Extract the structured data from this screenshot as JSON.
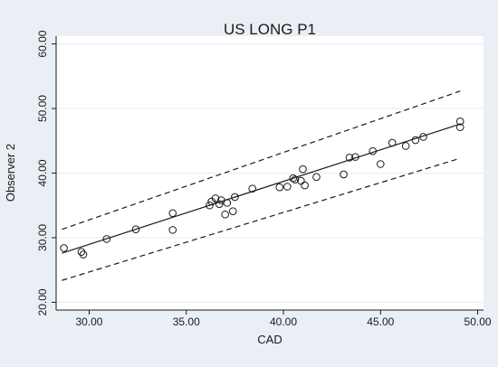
{
  "chart_data": {
    "type": "scatter",
    "title": "US LONG P1",
    "xlabel": "CAD",
    "ylabel": "Observer 2",
    "xlim": [
      28.3,
      50.3
    ],
    "ylim": [
      18.8,
      61.2
    ],
    "x_ticks": [
      30,
      35,
      40,
      45,
      50
    ],
    "x_tick_labels": [
      "30.00",
      "35.00",
      "40.00",
      "45.00",
      "50.00"
    ],
    "y_ticks": [
      20,
      30,
      40,
      50,
      60
    ],
    "y_tick_labels": [
      "20.00",
      "30.00",
      "40.00",
      "50.00",
      "60.00"
    ],
    "grid": "horizontal",
    "background_color": "#e9eff4",
    "plot_color": "#ffffff",
    "marker_color": "#1a1a1a",
    "points": [
      {
        "x": 28.7,
        "y": 28.4
      },
      {
        "x": 29.6,
        "y": 27.8
      },
      {
        "x": 29.7,
        "y": 27.4
      },
      {
        "x": 30.9,
        "y": 29.8
      },
      {
        "x": 32.4,
        "y": 31.3
      },
      {
        "x": 34.3,
        "y": 33.8
      },
      {
        "x": 34.3,
        "y": 31.2
      },
      {
        "x": 36.2,
        "y": 35.0
      },
      {
        "x": 36.3,
        "y": 35.6
      },
      {
        "x": 36.5,
        "y": 36.1
      },
      {
        "x": 36.7,
        "y": 35.2
      },
      {
        "x": 36.8,
        "y": 35.8
      },
      {
        "x": 37.0,
        "y": 33.6
      },
      {
        "x": 37.1,
        "y": 35.4
      },
      {
        "x": 37.4,
        "y": 34.1
      },
      {
        "x": 37.5,
        "y": 36.3
      },
      {
        "x": 38.4,
        "y": 37.6
      },
      {
        "x": 39.8,
        "y": 37.8
      },
      {
        "x": 40.2,
        "y": 37.9
      },
      {
        "x": 40.5,
        "y": 39.2
      },
      {
        "x": 40.6,
        "y": 39.0
      },
      {
        "x": 40.9,
        "y": 38.8
      },
      {
        "x": 41.0,
        "y": 40.6
      },
      {
        "x": 41.1,
        "y": 38.1
      },
      {
        "x": 41.7,
        "y": 39.4
      },
      {
        "x": 43.1,
        "y": 39.8
      },
      {
        "x": 43.4,
        "y": 42.4
      },
      {
        "x": 43.7,
        "y": 42.5
      },
      {
        "x": 44.6,
        "y": 43.4
      },
      {
        "x": 45.0,
        "y": 41.4
      },
      {
        "x": 45.6,
        "y": 44.7
      },
      {
        "x": 46.3,
        "y": 44.2
      },
      {
        "x": 46.8,
        "y": 45.1
      },
      {
        "x": 47.2,
        "y": 45.6
      },
      {
        "x": 49.1,
        "y": 47.1
      },
      {
        "x": 49.1,
        "y": 48.0
      }
    ],
    "fit_line": {
      "x": [
        28.6,
        49.1
      ],
      "y": [
        27.6,
        47.6
      ],
      "style": "solid"
    },
    "upper_band": {
      "x": [
        28.6,
        49.1
      ],
      "y": [
        31.3,
        52.7
      ],
      "style": "dashed"
    },
    "lower_band": {
      "x": [
        28.6,
        49.1
      ],
      "y": [
        23.4,
        42.3
      ],
      "style": "dashed"
    }
  }
}
